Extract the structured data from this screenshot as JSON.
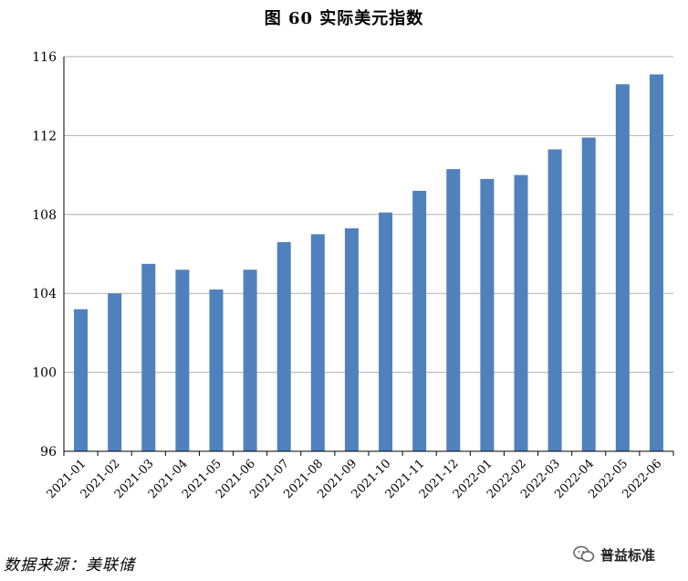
{
  "title": "图 60  实际美元指数",
  "source": "数据来源：美联储",
  "watermark": "普益标准",
  "watermark_icon": "wechat-icon",
  "colors": {
    "bar": "#4f81bd",
    "grid": "#b0b0b0",
    "axis": "#000000"
  },
  "chart_data": {
    "type": "bar",
    "title": "图 60  实际美元指数",
    "xlabel": "",
    "ylabel": "",
    "categories": [
      "2021-01",
      "2021-02",
      "2021-03",
      "2021-04",
      "2021-05",
      "2021-06",
      "2021-07",
      "2021-08",
      "2021-09",
      "2021-10",
      "2021-11",
      "2021-12",
      "2022-01",
      "2022-02",
      "2022-03",
      "2022-04",
      "2022-05",
      "2022-06"
    ],
    "values": [
      103.2,
      104.0,
      105.5,
      105.2,
      104.2,
      105.2,
      106.6,
      107.0,
      107.3,
      108.1,
      109.2,
      110.3,
      109.8,
      110.0,
      111.3,
      111.9,
      114.6,
      115.1
    ],
    "ylim": [
      96,
      116
    ],
    "yticks": [
      96,
      100,
      104,
      108,
      112,
      116
    ],
    "grid": true,
    "legend": "none"
  }
}
